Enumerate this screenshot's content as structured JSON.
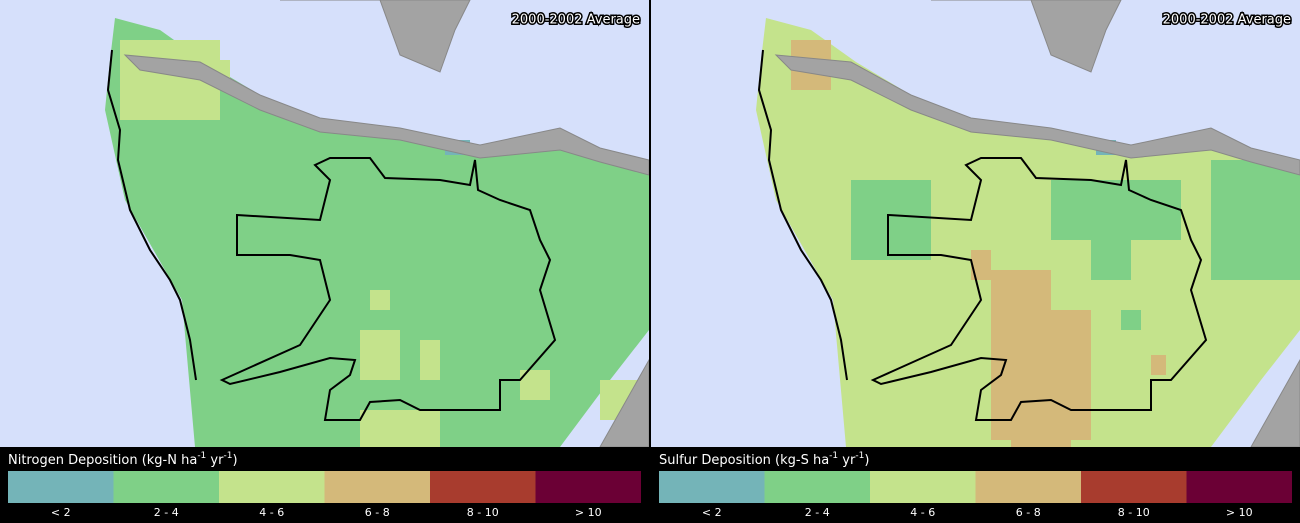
{
  "panels": [
    {
      "period": "2000-2002 Average",
      "legend_title": [
        "Nitrogen Deposition (kg-N ha",
        "-1",
        " yr",
        "-1",
        ")"
      ],
      "classes": [
        {
          "label": "< 2",
          "color": "#74b4b8"
        },
        {
          "label": "2 - 4",
          "color": "#7fd087"
        },
        {
          "label": "4 - 6",
          "color": "#c4e38c"
        },
        {
          "label": "6 - 8",
          "color": "#d4b97a"
        },
        {
          "label": "8 - 10",
          "color": "#a83c2e"
        },
        {
          "label": "> 10",
          "color": "#6b0035"
        }
      ]
    },
    {
      "period": "2000-2002 Average",
      "legend_title": [
        "Sulfur Deposition (kg-S ha",
        "-1",
        " yr",
        "-1",
        ")"
      ],
      "classes": [
        {
          "label": "< 2",
          "color": "#74b4b8"
        },
        {
          "label": "2 - 4",
          "color": "#7fd087"
        },
        {
          "label": "4 - 6",
          "color": "#c4e38c"
        },
        {
          "label": "6 - 8",
          "color": "#d4b97a"
        },
        {
          "label": "8 - 10",
          "color": "#a83c2e"
        },
        {
          "label": "> 10",
          "color": "#6b0035"
        }
      ]
    }
  ]
}
